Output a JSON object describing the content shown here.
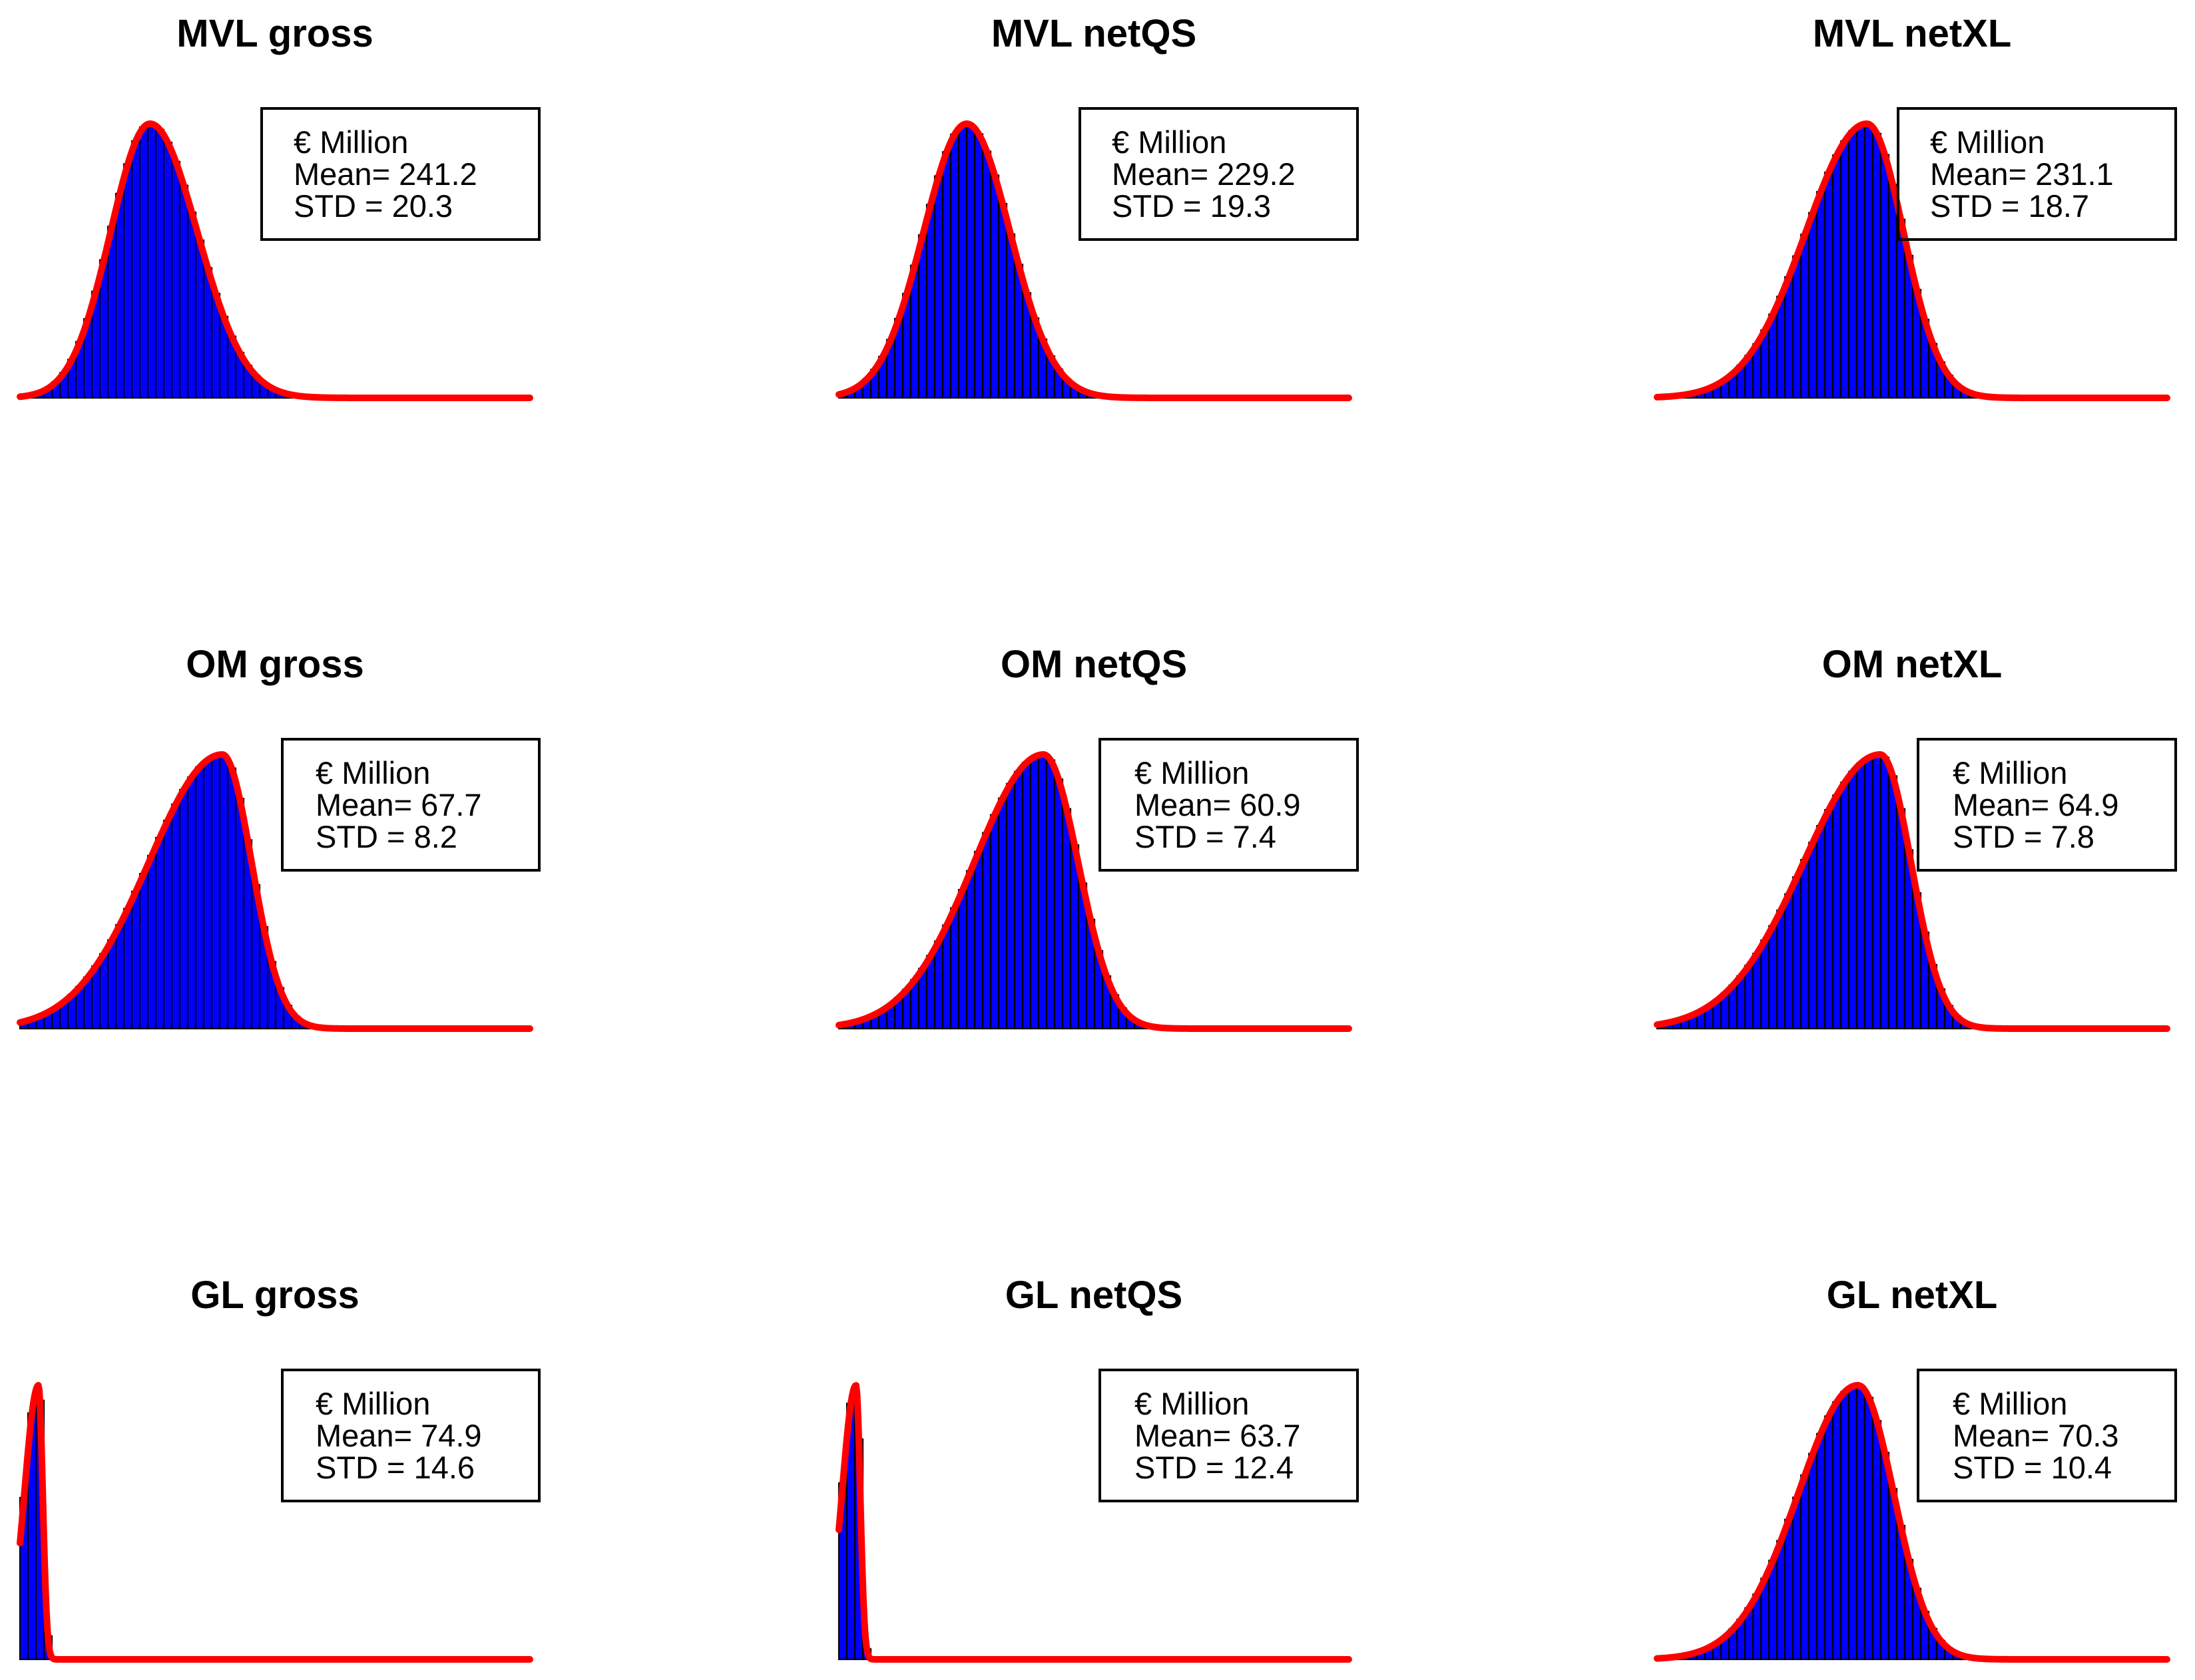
{
  "figure": {
    "unit_label": "€ Million"
  },
  "colors": {
    "bar_fill": "#0000ff",
    "bar_stroke": "#000000",
    "curve": "#ff0000",
    "legend_border": "#000000"
  },
  "chart_data": [
    {
      "type": "bar",
      "title": "MVL gross",
      "legend": {
        "unit": "€ Million",
        "mean_text": "Mean= 241.2",
        "std_text": "STD = 20.3"
      },
      "mean": 241.2,
      "std": 20.3,
      "xlim": [
        180,
        420
      ],
      "skew": 1.2,
      "grid": false
    },
    {
      "type": "bar",
      "title": "MVL netQS",
      "legend": {
        "unit": "€ Million",
        "mean_text": "Mean= 229.2",
        "std_text": "STD = 19.3"
      },
      "mean": 229.2,
      "std": 19.3,
      "xlim": [
        172,
        400
      ],
      "skew": 1.0,
      "grid": false
    },
    {
      "type": "bar",
      "title": "MVL netXL",
      "legend": {
        "unit": "€ Million",
        "mean_text": "Mean= 231.1",
        "std_text": "STD = 18.7"
      },
      "mean": 231.1,
      "std": 18.7,
      "xlim": [
        148,
        350
      ],
      "skew": 0.6,
      "grid": false
    },
    {
      "type": "bar",
      "title": "OM gross",
      "legend": {
        "unit": "€ Million",
        "mean_text": "Mean= 67.7",
        "std_text": "STD = 8.2"
      },
      "mean": 67.7,
      "std": 8.2,
      "xlim": [
        32,
        122
      ],
      "skew": 0.4,
      "grid": false
    },
    {
      "type": "bar",
      "title": "OM netQS",
      "legend": {
        "unit": "€ Million",
        "mean_text": "Mean= 60.9",
        "std_text": "STD = 7.4"
      },
      "mean": 60.9,
      "std": 7.4,
      "xlim": [
        30,
        107
      ],
      "skew": 0.5,
      "grid": false
    },
    {
      "type": "bar",
      "title": "OM netXL",
      "legend": {
        "unit": "€ Million",
        "mean_text": "Mean= 64.9",
        "std_text": "STD = 7.8"
      },
      "mean": 64.9,
      "std": 7.8,
      "xlim": [
        29,
        111
      ],
      "skew": 0.4,
      "grid": false
    },
    {
      "type": "bar",
      "title": "GL gross",
      "legend": {
        "unit": "€ Million",
        "mean_text": "Mean= 74.9",
        "std_text": "STD = 14.6"
      },
      "mean": 74.9,
      "std": 14.6,
      "xlim": [
        40,
        1000
      ],
      "skew": 0.3,
      "grid": false
    },
    {
      "type": "bar",
      "title": "GL netQS",
      "legend": {
        "unit": "€ Million",
        "mean_text": "Mean= 63.7",
        "std_text": "STD = 12.4"
      },
      "mean": 63.7,
      "std": 12.4,
      "xlim": [
        36,
        858
      ],
      "skew": 0.3,
      "grid": false
    },
    {
      "type": "bar",
      "title": "GL netXL",
      "legend": {
        "unit": "€ Million",
        "mean_text": "Mean= 70.3",
        "std_text": "STD = 10.4"
      },
      "mean": 70.3,
      "std": 10.4,
      "xlim": [
        25,
        140
      ],
      "skew": 0.6,
      "grid": false
    }
  ]
}
